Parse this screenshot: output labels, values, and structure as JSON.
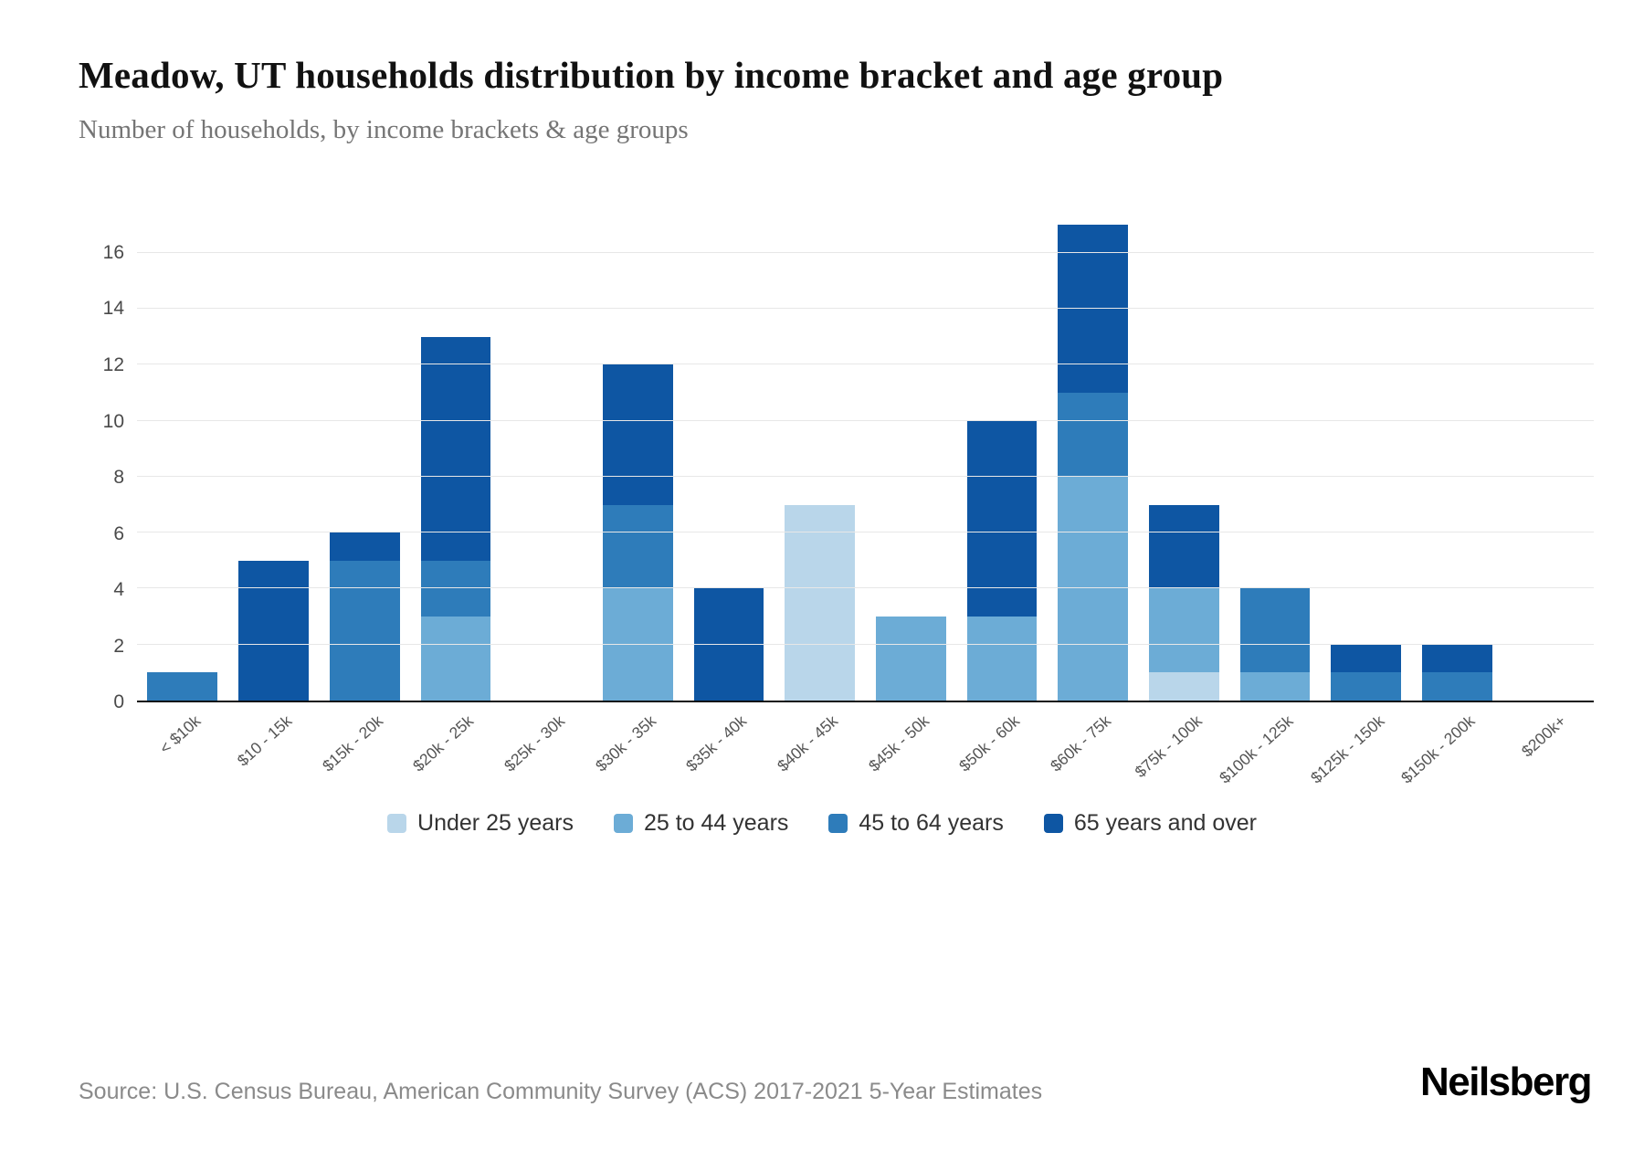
{
  "header": {
    "title": "Meadow, UT households distribution by income bracket and age group",
    "subtitle": "Number of households, by income brackets & age groups"
  },
  "chart_data": {
    "type": "bar",
    "stacked": true,
    "title": "Meadow, UT households distribution by income bracket and age group",
    "xlabel": "",
    "ylabel": "",
    "ylim": [
      0,
      17.3
    ],
    "yticks": [
      0,
      2,
      4,
      6,
      8,
      10,
      12,
      14,
      16
    ],
    "grid": true,
    "legend_position": "bottom",
    "categories": [
      "< $10k",
      "$10 - 15k",
      "$15k - 20k",
      "$20k - 25k",
      "$25k - 30k",
      "$30k - 35k",
      "$35k - 40k",
      "$40k - 45k",
      "$45k - 50k",
      "$50k - 60k",
      "$60k - 75k",
      "$75k - 100k",
      "$100k - 125k",
      "$125k - 150k",
      "$150k - 200k",
      "$200k+"
    ],
    "series": [
      {
        "name": "Under 25 years",
        "color": "#b9d6ea",
        "values": [
          0,
          0,
          0,
          0,
          0,
          0,
          0,
          7,
          0,
          0,
          0,
          1,
          0,
          0,
          0,
          0
        ]
      },
      {
        "name": "25 to 44 years",
        "color": "#6cacd6",
        "values": [
          0,
          0,
          0,
          3,
          0,
          4,
          0,
          0,
          3,
          3,
          8,
          3,
          1,
          0,
          0,
          0
        ]
      },
      {
        "name": "45 to 64 years",
        "color": "#2e7cba",
        "values": [
          1,
          0,
          5,
          2,
          0,
          3,
          0,
          0,
          0,
          0,
          3,
          0,
          3,
          1,
          1,
          0
        ]
      },
      {
        "name": "65 years and over",
        "color": "#0e56a3",
        "values": [
          0,
          5,
          1,
          8,
          0,
          5,
          4,
          0,
          0,
          7,
          6,
          3,
          0,
          1,
          1,
          0
        ]
      }
    ]
  },
  "footer": {
    "source": "Source: U.S. Census Bureau, American Community Survey (ACS) 2017-2021 5-Year Estimates",
    "brand": "Neilsberg"
  }
}
